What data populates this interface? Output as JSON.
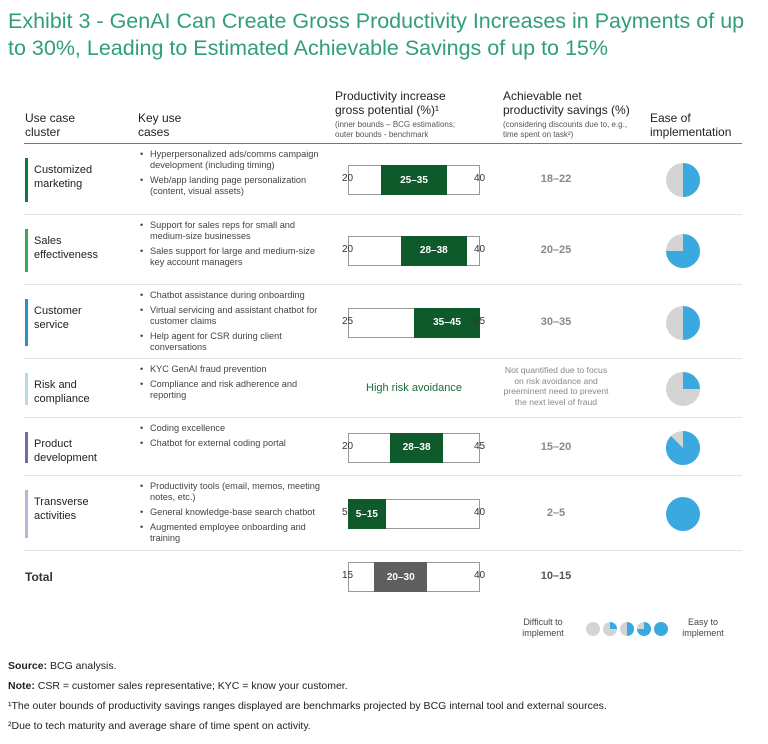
{
  "title": "Exhibit 3 - GenAI Can Create Gross Productivity Increases in Payments of up to 30%, Leading to Estimated Achievable Savings of up to 15%",
  "headers": {
    "cluster": "Use case cluster",
    "key_use": "Key use cases",
    "gross": "Productivity increase gross potential (%)¹",
    "gross_sub": "(inner bounds – BCG estimations; outer bounds - benchmark",
    "net": "Achievable net productivity savings (%)",
    "net_sub": "(considering discounts due to, e.g., time spent on task²)",
    "ease": "Ease of implementation"
  },
  "colors": {
    "green": "#0e5a2b",
    "grey": "#5f5f5f",
    "pie": "#3aa9df",
    "pie_bg": "#d4d4d4"
  },
  "chart_data": {
    "type": "table",
    "rows": [
      {
        "cluster": "Customized marketing",
        "accent": "#0f7a3d",
        "use_cases": [
          "Hyperpersonalized ads/comms campaign development (including timing)",
          "Web/app landing page personalization (content, visual assets)"
        ],
        "outer": [
          20,
          40
        ],
        "inner": [
          25,
          35
        ],
        "inner_label": "25–35",
        "outer_lo": "20",
        "outer_hi": "40",
        "net": "18–22",
        "ease": 0.5
      },
      {
        "cluster": "Sales effectiveness",
        "accent": "#34a853",
        "use_cases": [
          "Support for sales reps for small and medium-size businesses",
          "Sales support for large and medium-size key account managers"
        ],
        "outer": [
          20,
          40
        ],
        "inner": [
          28,
          38
        ],
        "inner_label": "28–38",
        "outer_lo": "20",
        "outer_hi": "40",
        "net": "20–25",
        "ease": 0.75
      },
      {
        "cluster": "Customer service",
        "accent": "#2a8fc7",
        "use_cases": [
          "Chatbot assistance during onboarding",
          "Virtual servicing and assistant chatbot for customer claims",
          "Help agent for CSR during client conversations"
        ],
        "outer": [
          25,
          45
        ],
        "inner": [
          35,
          45
        ],
        "inner_label": "35–45",
        "outer_lo": "25",
        "outer_hi": "45",
        "net": "30–35",
        "ease": 0.5
      },
      {
        "cluster": "Risk and compliance",
        "accent": "#b7d9ea",
        "use_cases": [
          "KYC GenAI fraud prevention",
          "Compliance and risk adherence and reporting"
        ],
        "text": "High risk avoidance",
        "net_note": "Not quantified due to focus on risk avoidance and preeminent need to prevent the next level of fraud",
        "ease": 0.25
      },
      {
        "cluster": "Product development",
        "accent": "#6f6ea0",
        "use_cases": [
          "Coding excellence",
          "Chatbot for external coding portal"
        ],
        "outer": [
          20,
          45
        ],
        "inner": [
          28,
          38
        ],
        "inner_label": "28–38",
        "outer_lo": "20",
        "outer_hi": "45",
        "net": "15–20",
        "ease": 0.875
      },
      {
        "cluster": "Transverse activities",
        "accent": "#b9b5d6",
        "use_cases": [
          "Productivity tools (email, memos, meeting notes, etc.)",
          "General knowledge-base search chatbot",
          "Augmented employee onboarding and training"
        ],
        "outer": [
          5,
          40
        ],
        "inner": [
          5,
          15
        ],
        "inner_label": "5–15",
        "outer_lo": "5",
        "outer_hi": "40",
        "net": "2–5",
        "ease": 1.0
      }
    ],
    "total": {
      "label": "Total",
      "outer": [
        15,
        40
      ],
      "inner": [
        20,
        30
      ],
      "inner_label": "20–30",
      "outer_lo": "15",
      "outer_hi": "40",
      "net": "10–15"
    }
  },
  "legend": {
    "left": "Difficult to implement",
    "right": "Easy to implement",
    "levels": [
      0,
      0.25,
      0.5,
      0.75,
      1.0
    ]
  },
  "footnotes": {
    "source_label": "Source:",
    "source": " BCG analysis.",
    "note_label": "Note:",
    "note": " CSR = customer sales representative; KYC = know your customer.",
    "fn1": "¹The outer bounds of productivity savings ranges displayed are benchmarks projected by BCG internal tool and external sources.",
    "fn2": "²Due to tech maturity and average share of time spent on activity."
  }
}
